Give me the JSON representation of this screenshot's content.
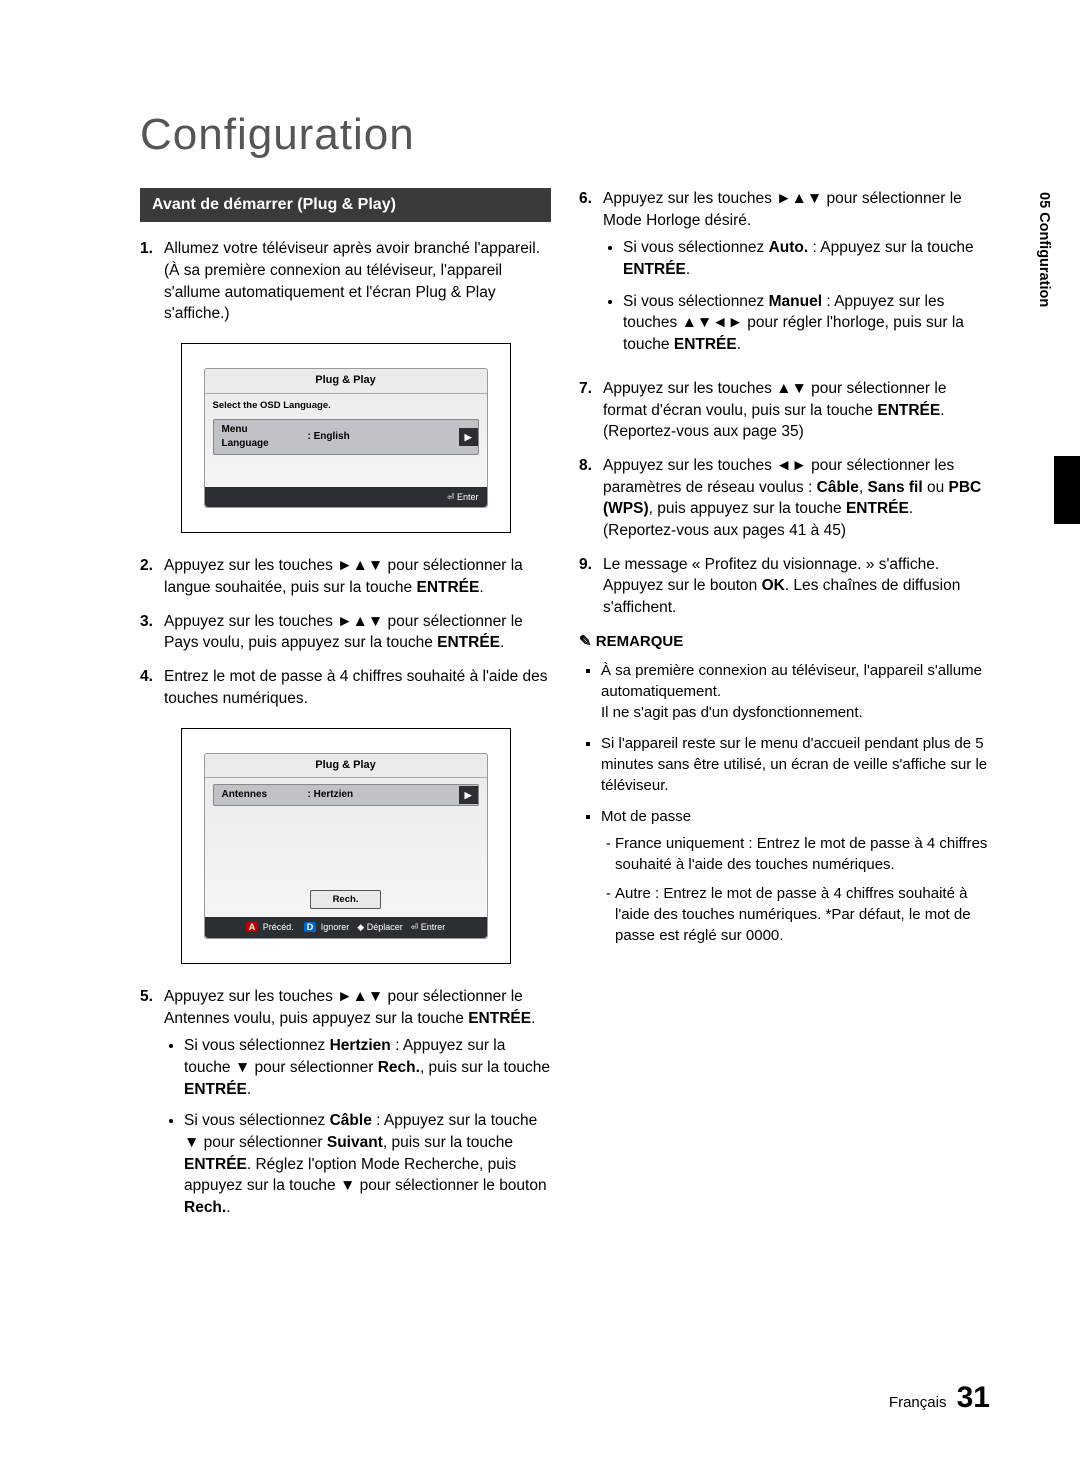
{
  "page_title": "Configuration",
  "side_tab": "05   Configuration",
  "footer_lang": "Français",
  "footer_page": "31",
  "section_header": "Avant de démarrer (Plug & Play)",
  "osd1": {
    "title": "Plug & Play",
    "sub": "Select the OSD Language.",
    "row_key": "Menu Language",
    "row_val": ": English",
    "arrow": "▶",
    "enter": "⏎ Enter"
  },
  "osd2": {
    "title": "Plug & Play",
    "row_key": "Antennes",
    "row_val": ": Hertzien",
    "arrow": "▶",
    "rech": "Rech.",
    "foot_a": "A",
    "foot_a_txt": "Précéd.",
    "foot_d": "D",
    "foot_d_txt": "Ignorer",
    "foot_move": "◆ Déplacer",
    "foot_enter": "⏎ Entrer"
  },
  "left_steps": [
    {
      "n": "1.",
      "t": "Allumez votre téléviseur après avoir branché l'appareil. (À sa première connexion au téléviseur, l'appareil s'allume automatiquement et l'écran Plug & Play s'affiche.)"
    },
    {
      "n": "2.",
      "t": "Appuyez sur les touches ►▲▼ pour sélectionner la langue souhaitée, puis sur la touche <b>ENTRÉE</b>."
    },
    {
      "n": "3.",
      "t": "Appuyez sur les touches ►▲▼ pour sélectionner le Pays voulu, puis appuyez sur la touche <b>ENTRÉE</b>."
    },
    {
      "n": "4.",
      "t": "Entrez le mot de passe à 4 chiffres souhaité à l'aide des touches numériques."
    }
  ],
  "step5": {
    "n": "5.",
    "t": "Appuyez sur les touches ►▲▼ pour sélectionner le Antennes voulu, puis appuyez sur la touche <b>ENTRÉE</b>.",
    "subs": [
      "Si vous sélectionnez <b>Hertzien</b> : Appuyez sur la touche ▼ pour sélectionner <b>Rech.</b>, puis sur la touche <b>ENTRÉE</b>.",
      "Si vous sélectionnez <b>Câble</b> : Appuyez sur la touche ▼ pour sélectionner <b>Suivant</b>, puis sur la touche <b>ENTRÉE</b>. Réglez l'option Mode Recherche, puis appuyez sur la touche ▼ pour sélectionner le bouton <b>Rech.</b>."
    ]
  },
  "step6": {
    "n": "6.",
    "t": "Appuyez sur les touches ►▲▼ pour sélectionner le Mode Horloge désiré.",
    "subs": [
      "Si vous sélectionnez <b>Auto.</b> : Appuyez sur la touche <b>ENTRÉE</b>.",
      "Si vous sélectionnez <b>Manuel</b> : Appuyez sur les touches ▲▼◄► pour régler l'horloge, puis sur la touche <b>ENTRÉE</b>."
    ]
  },
  "right_steps": [
    {
      "n": "7.",
      "t": "Appuyez sur les touches ▲▼ pour sélectionner le format d'écran voulu, puis sur la touche <b>ENTRÉE</b>. (Reportez-vous aux page 35)"
    },
    {
      "n": "8.",
      "t": "Appuyez sur les touches ◄► pour sélectionner les paramètres de réseau voulus : <b>Câble</b>, <b>Sans fil</b> ou <b>PBC (WPS)</b>, puis appuyez sur la touche <b>ENTRÉE</b>. (Reportez-vous aux pages 41 à 45)"
    },
    {
      "n": "9.",
      "t": "Le message « Profitez du visionnage. » s'affiche. Appuyez sur le bouton <b>OK</b>. Les chaînes de diffusion s'affichent."
    }
  ],
  "note_title": "REMARQUE",
  "notes": [
    "À sa première connexion au téléviseur, l'appareil s'allume automatiquement.<br>Il ne s'agit pas d'un dysfonctionnement.",
    "Si l'appareil reste sur le menu d'accueil pendant plus de 5 minutes sans être utilisé, un écran de veille s'affiche sur le téléviseur.",
    "Mot de passe"
  ],
  "note_subs": [
    "France uniquement : Entrez le mot de passe à 4 chiffres souhaité à l'aide des touches numériques.",
    "Autre : Entrez le mot de passe à 4 chiffres souhaité à l'aide des touches numériques. *Par défaut, le mot de passe est réglé sur 0000."
  ]
}
